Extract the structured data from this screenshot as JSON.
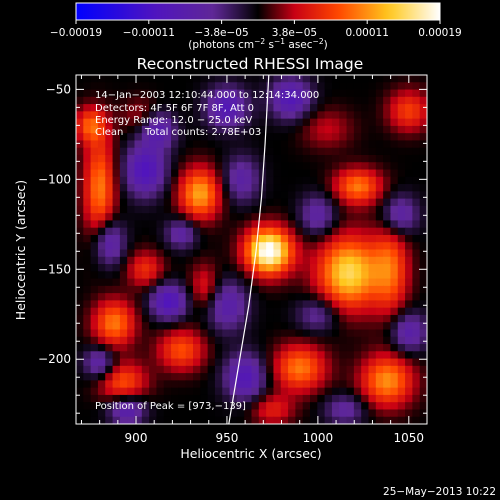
{
  "chart_data": {
    "type": "heatmap",
    "title": "Reconstructed RHESSI Image",
    "xlabel": "Heliocentric X (arcsec)",
    "ylabel": "Heliocentric Y (arcsec)",
    "xlim": [
      867,
      1060
    ],
    "ylim": [
      -236,
      -42
    ],
    "x_ticks": [
      900,
      950,
      1000,
      1050
    ],
    "y_ticks": [
      -50,
      -100,
      -150,
      -200
    ],
    "x_tick_labels": [
      "900",
      "950",
      "1000",
      "1050"
    ],
    "y_tick_labels": [
      "−50",
      "−100",
      "−150",
      "−200"
    ],
    "colorbar": {
      "min": -0.00019,
      "max": 0.00019,
      "tick_labels": [
        "−0.00019",
        "−0.00011",
        "−3.8e−05",
        "3.8e−05",
        "0.00011",
        "0.00019"
      ],
      "unit_main": "(photons cm",
      "unit_exp1": "−2",
      "unit_mid": " s",
      "unit_exp2": "−1",
      "unit_tail": " asec",
      "unit_exp3": "−2",
      "unit_close": ")"
    },
    "annotations": {
      "time_range": "14−Jan−2003 12:10:44.000 to 12:14:34.000",
      "detectors": "Detectors: 4F 5F 6F 7F 8F, Att 0",
      "energy_range": "Energy Range: 12.0 − 25.0 keV",
      "algorithm": "Clean",
      "total_counts": "Total counts: 2.78E+03",
      "peak": "Position of Peak = [973,−139]"
    },
    "peak": [
      973,
      -139
    ],
    "blobs": [
      {
        "x": 973,
        "y": -140,
        "sx": 9,
        "sy": 9,
        "amp": 1.05
      },
      {
        "x": 1017,
        "y": -152,
        "sx": 12,
        "sy": 14,
        "amp": 0.8
      },
      {
        "x": 1022,
        "y": -104,
        "sx": 9,
        "sy": 7,
        "amp": 0.55
      },
      {
        "x": 1040,
        "y": -150,
        "sx": 7,
        "sy": 18,
        "amp": 0.45
      },
      {
        "x": 1038,
        "y": -212,
        "sx": 10,
        "sy": 10,
        "amp": 0.6
      },
      {
        "x": 990,
        "y": -205,
        "sx": 10,
        "sy": 9,
        "amp": 0.55
      },
      {
        "x": 935,
        "y": -108,
        "sx": 8,
        "sy": 10,
        "amp": 0.65
      },
      {
        "x": 880,
        "y": -105,
        "sx": 6,
        "sy": 20,
        "amp": 0.55
      },
      {
        "x": 888,
        "y": -180,
        "sx": 8,
        "sy": 9,
        "amp": 0.55
      },
      {
        "x": 893,
        "y": -213,
        "sx": 9,
        "sy": 8,
        "amp": 0.45
      },
      {
        "x": 875,
        "y": -70,
        "sx": 6,
        "sy": 7,
        "amp": 0.45
      },
      {
        "x": 908,
        "y": -65,
        "sx": 9,
        "sy": 7,
        "amp": 0.35
      },
      {
        "x": 925,
        "y": -195,
        "sx": 9,
        "sy": 8,
        "amp": 0.45
      },
      {
        "x": 905,
        "y": -150,
        "sx": 7,
        "sy": 7,
        "amp": 0.35
      },
      {
        "x": 1050,
        "y": -62,
        "sx": 8,
        "sy": 8,
        "amp": 0.4
      },
      {
        "x": 975,
        "y": -228,
        "sx": 8,
        "sy": 6,
        "amp": 0.3
      },
      {
        "x": 938,
        "y": -160,
        "sx": 6,
        "sy": 9,
        "amp": 0.3
      },
      {
        "x": 1005,
        "y": -72,
        "sx": 10,
        "sy": 8,
        "amp": 0.2
      },
      {
        "x": 958,
        "y": -100,
        "sx": 7,
        "sy": 9,
        "amp": -0.35
      },
      {
        "x": 905,
        "y": -95,
        "sx": 8,
        "sy": 10,
        "amp": -0.55
      },
      {
        "x": 912,
        "y": -70,
        "sx": 7,
        "sy": 8,
        "amp": -0.6
      },
      {
        "x": 885,
        "y": -135,
        "sx": 6,
        "sy": 9,
        "amp": -0.45
      },
      {
        "x": 950,
        "y": -60,
        "sx": 8,
        "sy": 8,
        "amp": -0.5
      },
      {
        "x": 985,
        "y": -55,
        "sx": 8,
        "sy": 8,
        "amp": -0.5
      },
      {
        "x": 1000,
        "y": -120,
        "sx": 7,
        "sy": 8,
        "amp": -0.35
      },
      {
        "x": 1045,
        "y": -120,
        "sx": 7,
        "sy": 8,
        "amp": -0.4
      },
      {
        "x": 1050,
        "y": -185,
        "sx": 7,
        "sy": 8,
        "amp": -0.4
      },
      {
        "x": 918,
        "y": -168,
        "sx": 7,
        "sy": 7,
        "amp": -0.55
      },
      {
        "x": 950,
        "y": -170,
        "sx": 8,
        "sy": 10,
        "amp": -0.4
      },
      {
        "x": 880,
        "y": -202,
        "sx": 6,
        "sy": 6,
        "amp": -0.4
      },
      {
        "x": 895,
        "y": -228,
        "sx": 7,
        "sy": 6,
        "amp": -0.45
      },
      {
        "x": 960,
        "y": -210,
        "sx": 8,
        "sy": 9,
        "amp": -0.5
      },
      {
        "x": 1000,
        "y": -175,
        "sx": 8,
        "sy": 7,
        "amp": -0.3
      },
      {
        "x": 1015,
        "y": -228,
        "sx": 8,
        "sy": 6,
        "amp": -0.3
      },
      {
        "x": 925,
        "y": -130,
        "sx": 6,
        "sy": 6,
        "amp": -0.35
      }
    ],
    "limb_curve": [
      [
        951,
        -236
      ],
      [
        957,
        -200
      ],
      [
        962,
        -170
      ],
      [
        966,
        -140
      ],
      [
        969,
        -110
      ],
      [
        971,
        -80
      ],
      [
        973,
        -42
      ]
    ]
  },
  "footer": {
    "date": "25−May−2013 10:22"
  }
}
